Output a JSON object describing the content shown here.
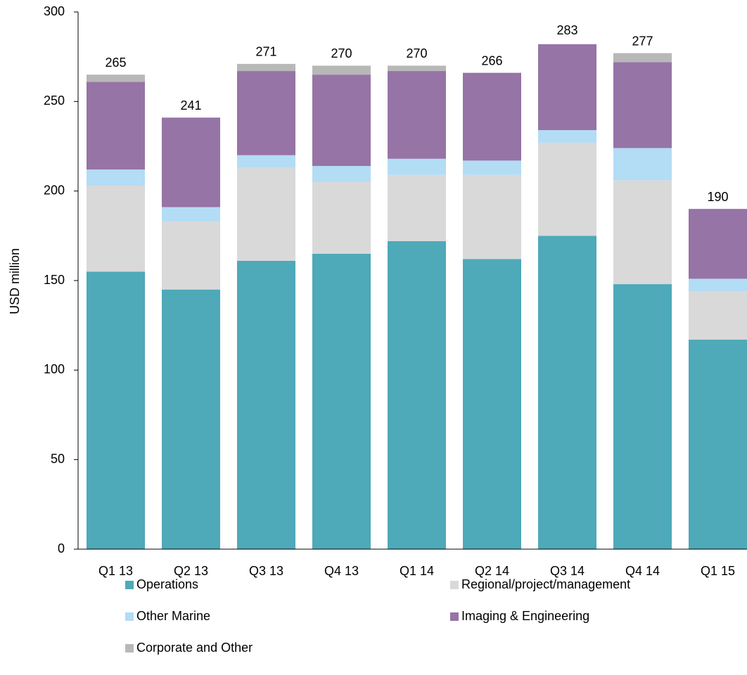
{
  "chart_data": {
    "type": "stacked_bar",
    "y_label": "USD million",
    "categories": [
      "Q1 13",
      "Q2 13",
      "Q3 13",
      "Q4 13",
      "Q1 14",
      "Q2 14",
      "Q3 14",
      "Q4 14",
      "Q1 15"
    ],
    "series": [
      {
        "name": "Operations",
        "color": "#4ea9b9",
        "values": [
          155,
          145,
          161,
          165,
          172,
          162,
          175,
          148,
          117
        ]
      },
      {
        "name": "Regional/project/management",
        "color": "#d9d9d9",
        "values": [
          48,
          38,
          52,
          40,
          37,
          47,
          52,
          58,
          27
        ]
      },
      {
        "name": "Other Marine",
        "color": "#b3dcf5",
        "values": [
          9,
          8,
          7,
          9,
          9,
          8,
          7,
          18,
          7
        ]
      },
      {
        "name": "Imaging & Engineering",
        "color": "#9674a6",
        "values": [
          49,
          50,
          47,
          51,
          49,
          49,
          48,
          48,
          39
        ]
      },
      {
        "name": "Corporate and Other",
        "color": "#b8b8b8",
        "values": [
          4,
          0,
          4,
          5,
          3,
          0,
          0,
          5,
          0
        ]
      }
    ],
    "totals": [
      265,
      241,
      271,
      270,
      270,
      266,
      283,
      277,
      190
    ],
    "ylim": [
      0,
      300
    ],
    "yticks": [
      0,
      50,
      100,
      150,
      200,
      250,
      300
    ],
    "grid": false
  }
}
